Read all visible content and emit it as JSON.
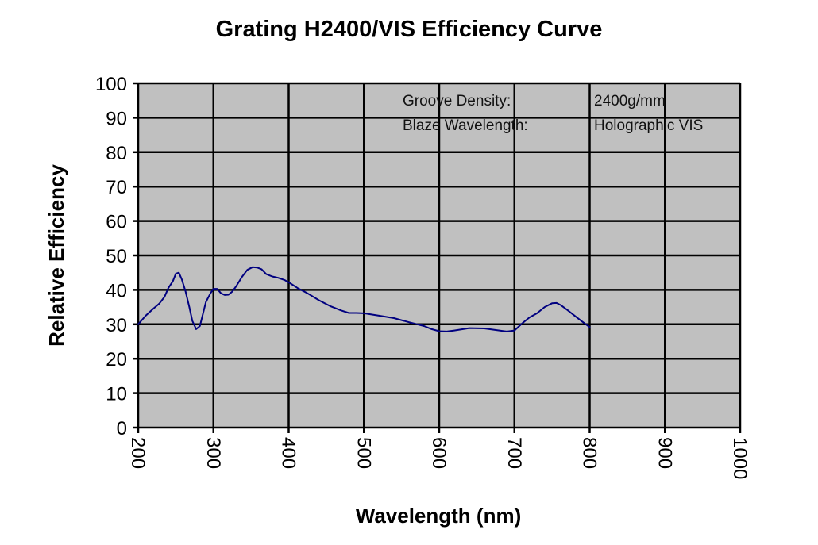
{
  "chart_data": {
    "type": "line",
    "title": "Grating H2400/VIS Efficiency Curve",
    "xlabel": "Wavelength (nm)",
    "ylabel": "Relative Efficiency",
    "xlim": [
      200,
      1000
    ],
    "ylim": [
      0,
      100
    ],
    "xticks": [
      200,
      300,
      400,
      500,
      600,
      700,
      800,
      900,
      1000
    ],
    "yticks": [
      0,
      10,
      20,
      30,
      40,
      50,
      60,
      70,
      80,
      90,
      100
    ],
    "xtick_labels": [
      "200",
      "300",
      "400",
      "500",
      "600",
      "700",
      "800",
      "900",
      "1000"
    ],
    "ytick_labels": [
      "0",
      "10",
      "20",
      "30",
      "40",
      "50",
      "60",
      "70",
      "80",
      "90",
      "100"
    ],
    "grid": true,
    "plot_background": "#c0c0c0",
    "series": [
      {
        "name": "Efficiency",
        "color": "#000080",
        "x": [
          200,
          210,
          220,
          228,
          235,
          240,
          246,
          250,
          254,
          258,
          263,
          268,
          272,
          277,
          282,
          286,
          290,
          296,
          300,
          305,
          310,
          315,
          320,
          325,
          330,
          338,
          345,
          352,
          358,
          364,
          370,
          378,
          386,
          395,
          403,
          412,
          425,
          440,
          455,
          470,
          480,
          490,
          500,
          520,
          540,
          560,
          580,
          590,
          600,
          610,
          620,
          640,
          660,
          680,
          690,
          700,
          710,
          720,
          730,
          740,
          750,
          756,
          762,
          770,
          780,
          790,
          800
        ],
        "y": [
          30,
          32.5,
          34.5,
          36,
          38,
          40.5,
          42.5,
          44.7,
          45,
          43,
          39.5,
          35,
          31,
          28.6,
          29.5,
          33,
          36.5,
          39,
          40.3,
          40.3,
          39,
          38.5,
          38.6,
          39.5,
          41,
          43.8,
          45.8,
          46.6,
          46.5,
          46,
          44.6,
          43.9,
          43.5,
          42.8,
          41.8,
          40.5,
          39,
          37,
          35.3,
          34,
          33.3,
          33.3,
          33.2,
          32.5,
          31.8,
          30.6,
          29.5,
          28.6,
          28,
          27.9,
          28.2,
          28.9,
          28.8,
          28.2,
          27.9,
          28.2,
          30.2,
          32,
          33.2,
          35,
          36.1,
          36.2,
          35.5,
          34.2,
          32.5,
          30.8,
          29.2
        ]
      }
    ],
    "annotations": [
      {
        "label": "Groove Density:",
        "value": "2400g/mm"
      },
      {
        "label": "Blaze Wavelength:",
        "value": "Holographic VIS"
      }
    ],
    "legend": "none"
  }
}
